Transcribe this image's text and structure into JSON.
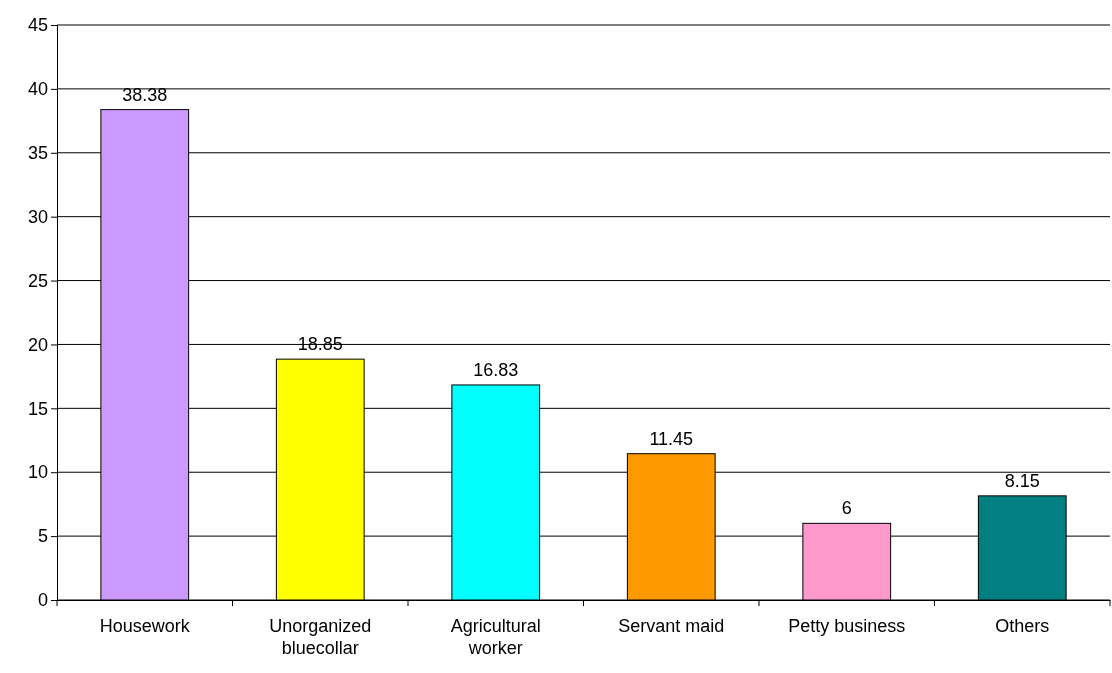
{
  "chart_data": {
    "type": "bar",
    "categories": [
      "Housework",
      "Unorganized bluecollar",
      "Agricultural worker",
      "Servant maid",
      "Petty business",
      "Others"
    ],
    "values": [
      38.38,
      18.85,
      16.83,
      11.45,
      6,
      8.15
    ],
    "colors": [
      "#cc99ff",
      "#ffff00",
      "#00ffff",
      "#ff9900",
      "#ff99cc",
      "#008080"
    ],
    "ylim": [
      0,
      45
    ],
    "yticks": [
      0,
      5,
      10,
      15,
      20,
      25,
      30,
      35,
      40,
      45
    ],
    "grid": "y",
    "data_labels": true
  }
}
